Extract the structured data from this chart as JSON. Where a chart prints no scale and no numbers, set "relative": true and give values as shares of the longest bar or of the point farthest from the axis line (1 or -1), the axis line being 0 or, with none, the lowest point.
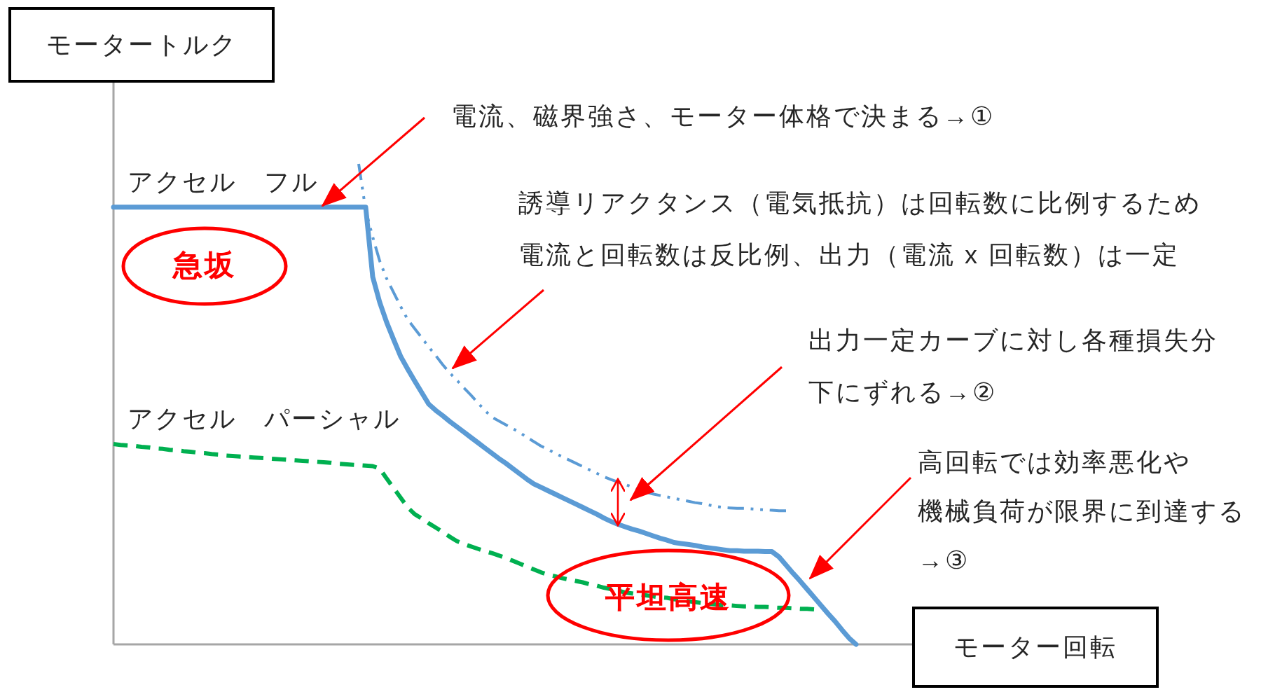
{
  "chart_data": {
    "type": "line",
    "relative": true,
    "ylabel": "モータートルク",
    "xlabel": "モーター回転",
    "categories": [
      null,
      null,
      null,
      null,
      null,
      null,
      null,
      null,
      null,
      null,
      null,
      null,
      null,
      null,
      null,
      null,
      null,
      null,
      null,
      null,
      null,
      null,
      null,
      null,
      null,
      null,
      null,
      null,
      null,
      null,
      null,
      null,
      null,
      null,
      null,
      null,
      null,
      null,
      null,
      null,
      null,
      null,
      null,
      null,
      null,
      null,
      null,
      null,
      null,
      null,
      null,
      null,
      null,
      null,
      null,
      null,
      null,
      null,
      null,
      null,
      null,
      null,
      null,
      null,
      null,
      null,
      null,
      null,
      null,
      null,
      null,
      null,
      null,
      null,
      null,
      null,
      null,
      null,
      null,
      null,
      null,
      null,
      null,
      null,
      null,
      null,
      null,
      null,
      null,
      null,
      null,
      null,
      null,
      null,
      null,
      null,
      null,
      null,
      null,
      null,
      null,
      null,
      null,
      null,
      null,
      null,
      null
    ],
    "series": [
      {
        "name": "アクセル　フル",
        "color": "#5b9bd5",
        "line_style": "solid",
        "values": [
          0.91,
          0.91,
          0.91,
          0.91,
          0.91,
          0.91,
          0.91,
          0.91,
          0.91,
          0.91,
          0.91,
          0.91,
          0.91,
          0.91,
          0.91,
          0.91,
          0.91,
          0.91,
          0.91,
          0.91,
          0.91,
          0.91,
          0.91,
          0.91,
          0.91,
          0.91,
          0.91,
          0.91,
          0.91,
          0.91,
          0.91,
          0.91,
          0.91,
          0.91,
          0.91,
          0.91,
          0.91,
          0.765,
          0.712,
          0.67,
          0.634,
          0.599,
          0.573,
          0.548,
          0.524,
          0.5,
          0.487,
          0.476,
          0.464,
          0.453,
          0.442,
          0.431,
          0.42,
          0.409,
          0.398,
          0.387,
          0.377,
          0.366,
          0.355,
          0.344,
          0.334,
          0.327,
          0.32,
          0.313,
          0.306,
          0.299,
          0.292,
          0.285,
          0.278,
          0.271,
          0.263,
          0.256,
          0.25,
          0.245,
          0.24,
          0.236,
          0.231,
          0.226,
          0.221,
          0.217,
          0.212,
          0.21,
          0.208,
          0.206,
          0.203,
          0.201,
          0.199,
          0.197,
          0.195,
          0.195,
          0.194,
          0.194,
          0.194,
          0.193,
          0.193,
          0.182,
          0.165,
          0.148,
          0.132,
          0.115,
          0.098,
          0.081,
          0.064,
          0.048,
          0.03,
          0.013,
          0
        ]
      },
      {
        "color": "#5b9bd5",
        "line_style": "dashdot",
        "values": [
          null,
          null,
          null,
          null,
          null,
          null,
          null,
          null,
          null,
          null,
          null,
          null,
          null,
          null,
          null,
          null,
          null,
          null,
          null,
          null,
          null,
          null,
          null,
          null,
          null,
          null,
          null,
          null,
          null,
          null,
          null,
          null,
          null,
          null,
          null,
          1.0,
          0.904,
          0.848,
          0.798,
          0.761,
          0.732,
          0.703,
          0.676,
          0.657,
          0.638,
          0.619,
          0.601,
          0.582,
          0.565,
          0.55,
          0.534,
          0.519,
          0.503,
          0.487,
          0.473,
          0.465,
          0.457,
          0.449,
          0.441,
          0.431,
          0.422,
          0.413,
          0.406,
          0.398,
          0.391,
          0.384,
          0.377,
          0.37,
          0.363,
          0.356,
          0.349,
          0.343,
          0.338,
          0.333,
          0.328,
          0.322,
          0.317,
          0.313,
          0.31,
          0.307,
          0.304,
          0.301,
          0.298,
          0.295,
          0.293,
          0.29,
          0.287,
          0.285,
          0.284,
          0.283,
          0.283,
          0.282,
          0.281,
          0.28,
          0.279,
          0.278,
          0.278,
          null,
          null,
          null,
          null,
          null,
          null,
          null,
          null,
          null,
          null
        ]
      },
      {
        "name": "アクセル　パーシャル",
        "color": "#00b050",
        "line_style": "dashed",
        "values": [
          0.417,
          0.415,
          0.414,
          0.413,
          0.411,
          0.41,
          0.408,
          0.407,
          0.405,
          0.404,
          0.402,
          0.401,
          0.399,
          0.398,
          0.396,
          0.395,
          0.393,
          0.392,
          0.391,
          0.39,
          0.389,
          0.388,
          0.387,
          0.386,
          0.385,
          0.384,
          0.383,
          0.382,
          0.381,
          0.38,
          0.379,
          0.378,
          0.376,
          0.375,
          0.374,
          0.373,
          0.372,
          0.371,
          0.366,
          0.345,
          0.325,
          0.305,
          0.285,
          0.271,
          0.262,
          0.252,
          0.243,
          0.234,
          0.224,
          0.215,
          0.209,
          0.204,
          0.199,
          0.194,
          0.19,
          0.185,
          0.18,
          0.174,
          0.168,
          0.162,
          0.156,
          0.15,
          0.145,
          0.142,
          0.138,
          0.135,
          0.132,
          0.129,
          0.125,
          0.122,
          0.118,
          0.115,
          0.112,
          0.108,
          0.106,
          0.104,
          0.102,
          0.1,
          0.098,
          0.097,
          0.094,
          0.092,
          0.09,
          0.088,
          0.086,
          0.085,
          0.083,
          0.081,
          0.081,
          0.08,
          0.079,
          0.079,
          0.078,
          0.078,
          0.077,
          0.076,
          0.076,
          0.075,
          0.074,
          0.074,
          0.073,
          null,
          null,
          null,
          null,
          null,
          null
        ]
      }
    ],
    "annotations": [
      "急坂",
      "平坦高速",
      "電流、磁界強さ、モーター体格で決まる→①",
      "誘導リアクタンス（電気抵抗）は回転数に比例するため",
      "電流と回転数は反比例、出力（電流 x 回転数）は一定",
      "出力一定カーブに対し各種損失分",
      "下にずれる→②",
      "高回転では効率悪化や",
      "機械負荷が限界に到達する",
      "→③"
    ]
  }
}
